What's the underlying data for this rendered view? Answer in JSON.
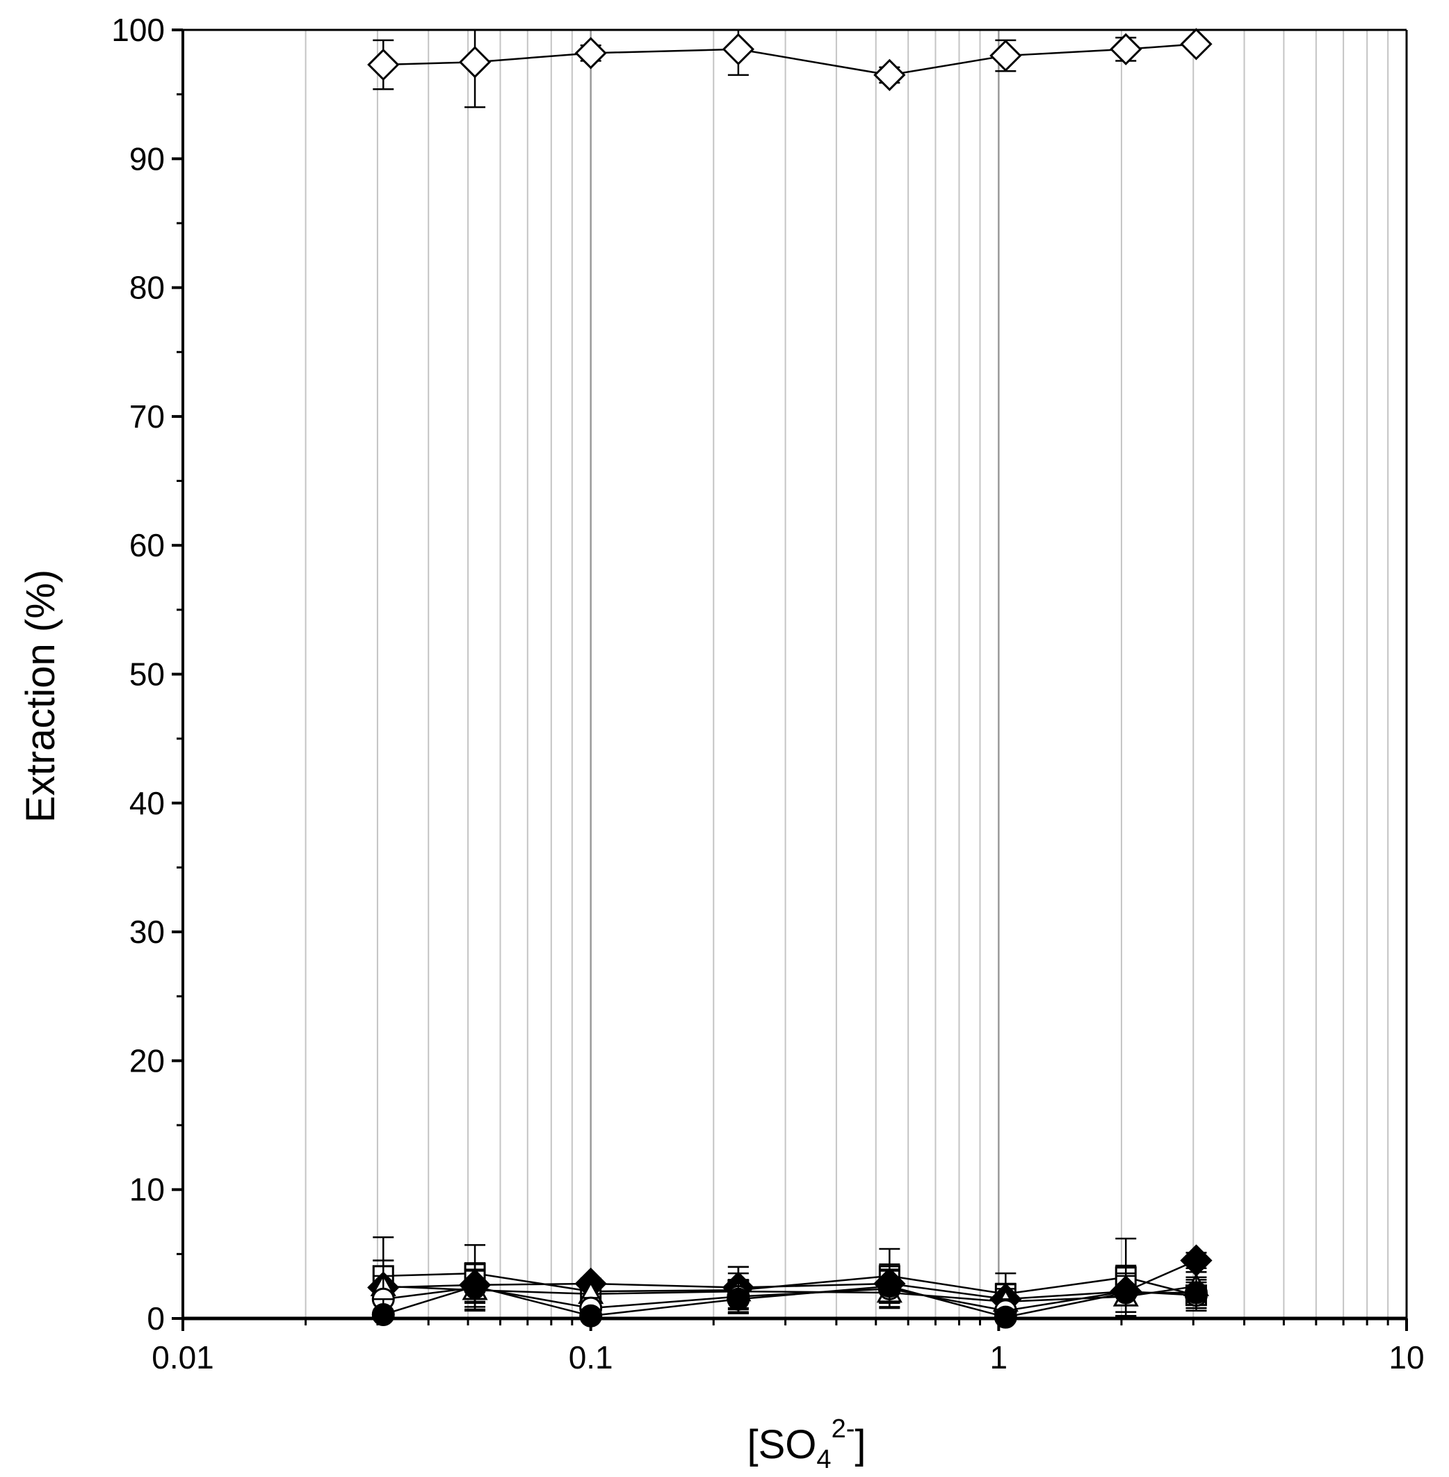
{
  "chart_data": {
    "type": "scatter",
    "xlabel": {
      "prefix": "[SO",
      "sub": "4",
      "sup": "2-",
      "suffix": "]"
    },
    "ylabel": "Extraction (%)",
    "xscale": "log",
    "xlim": [
      0.01,
      10
    ],
    "ylim": [
      0,
      100
    ],
    "x_ticks": [
      0.01,
      0.1,
      1,
      10
    ],
    "x_tick_labels": [
      "0.01",
      "0.1",
      "1",
      "10"
    ],
    "y_ticks": [
      0,
      10,
      20,
      30,
      40,
      50,
      60,
      70,
      80,
      90,
      100
    ],
    "y_tick_labels": [
      "0",
      "10",
      "20",
      "30",
      "40",
      "50",
      "60",
      "70",
      "80",
      "90",
      "100"
    ],
    "grid": "vertical-minor",
    "legend": "none",
    "x": [
      0.031,
      0.052,
      0.1,
      0.23,
      0.54,
      1.04,
      2.05,
      3.05
    ],
    "series": [
      {
        "marker": "open-diamond",
        "values": [
          97.3,
          97.5,
          98.2,
          98.5,
          96.5,
          98.0,
          98.5,
          98.9
        ],
        "errors": [
          1.9,
          3.5,
          0.6,
          2.0,
          0.6,
          1.2,
          0.9,
          0.4
        ]
      },
      {
        "marker": "open-square",
        "values": [
          3.3,
          3.5,
          2.1,
          2.2,
          3.3,
          1.9,
          3.2,
          1.8
        ],
        "errors": [
          3.0,
          2.2,
          0.6,
          1.8,
          2.1,
          1.6,
          3.0,
          1.2
        ]
      },
      {
        "marker": "filled-diamond",
        "values": [
          2.4,
          2.6,
          2.7,
          2.4,
          2.7,
          1.5,
          2.1,
          4.5
        ],
        "errors": [
          2.1,
          1.7,
          0.4,
          1.6,
          1.5,
          1.2,
          2.0,
          0.6
        ]
      },
      {
        "marker": "open-triangle",
        "values": [
          2.5,
          2.2,
          1.9,
          2.1,
          2.0,
          1.3,
          1.7,
          2.5
        ],
        "errors": [
          2.0,
          1.5,
          0.5,
          1.4,
          1.2,
          1.0,
          1.6,
          1.1
        ]
      },
      {
        "marker": "open-circle",
        "values": [
          1.5,
          2.4,
          0.8,
          1.7,
          2.3,
          0.6,
          2.1,
          1.8
        ],
        "errors": [
          1.8,
          1.8,
          0.8,
          1.3,
          1.4,
          0.9,
          1.9,
          1.0
        ]
      },
      {
        "marker": "filled-circle",
        "values": [
          0.3,
          2.5,
          0.2,
          1.5,
          2.5,
          0.1,
          2.0,
          2.0
        ],
        "errors": [
          1.2,
          1.3,
          0.5,
          1.0,
          1.3,
          0.6,
          1.5,
          1.2
        ]
      }
    ]
  },
  "colors": {
    "axis": "#000000",
    "grid": "#c4c4c4",
    "marker_fill_open": "#ffffff",
    "marker_fill_filled": "#000000"
  }
}
